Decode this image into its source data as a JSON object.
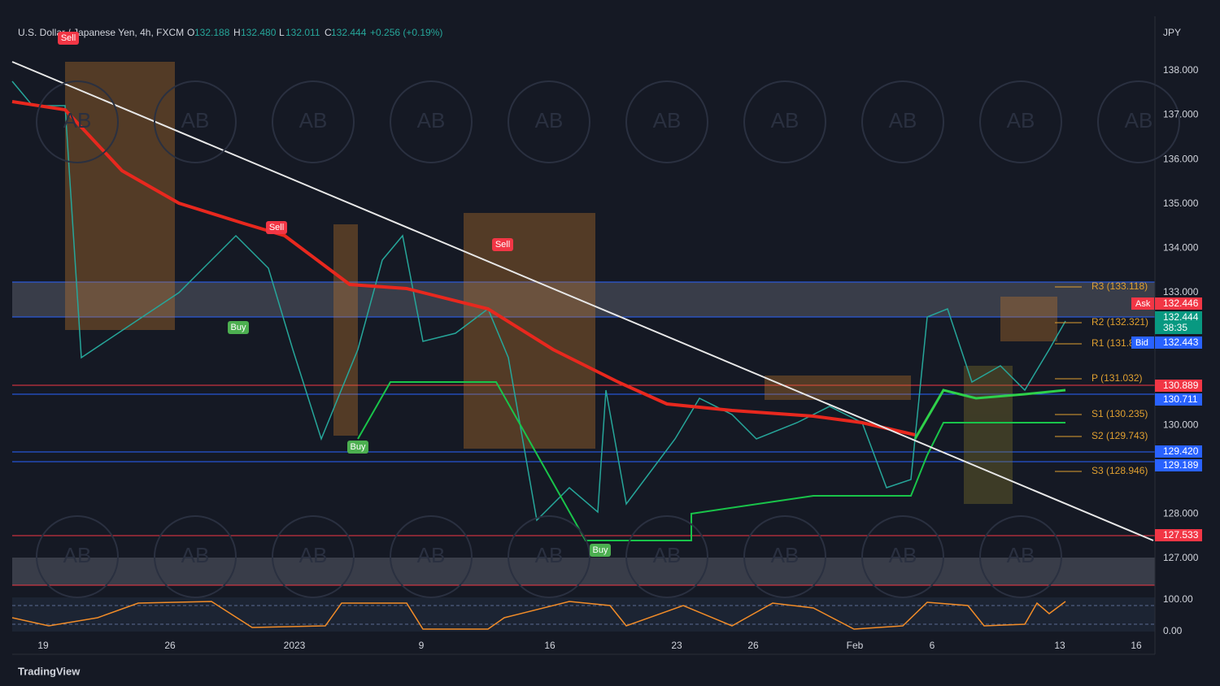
{
  "header": {
    "symbol": "U.S. Dollar / Japanese Yen, 4h, FXCM",
    "open_label": "O",
    "open": "132.188",
    "high_label": "H",
    "high": "132.480",
    "low_label": "L",
    "low": "132.011",
    "close_label": "C",
    "close": "132.444",
    "change": "+0.256 (+0.19%)"
  },
  "currency": "JPY",
  "price_axis": [
    "138.000",
    "137.000",
    "136.000",
    "135.000",
    "134.000",
    "133.000",
    "130.000",
    "128.000",
    "127.000"
  ],
  "oscillator_axis": [
    "100.00",
    "0.00"
  ],
  "time_axis": [
    "19",
    "26",
    "2023",
    "9",
    "16",
    "23",
    "26",
    "Feb",
    "6",
    "13",
    "16"
  ],
  "badges": [
    {
      "label": "Ask",
      "value": "132.446"
    },
    {
      "value": "132.444",
      "countdown": "38:35"
    },
    {
      "label": "Bid",
      "value": "132.443"
    },
    {
      "value": "130.889"
    },
    {
      "value": "130.711"
    },
    {
      "value": "129.420"
    },
    {
      "value": "129.189"
    },
    {
      "value": "127.533"
    }
  ],
  "pivots": [
    "R3 (133.118)",
    "R2 (132.321)",
    "R1 (131.8",
    "P (131.032)",
    "S1 (130.235)",
    "S2 (129.743)",
    "S3 (128.946)"
  ],
  "signals": [
    "Sell",
    "Sell",
    "Sell",
    "Buy",
    "Buy",
    "Buy"
  ],
  "watermark": "AB",
  "footer": "TradingView"
}
